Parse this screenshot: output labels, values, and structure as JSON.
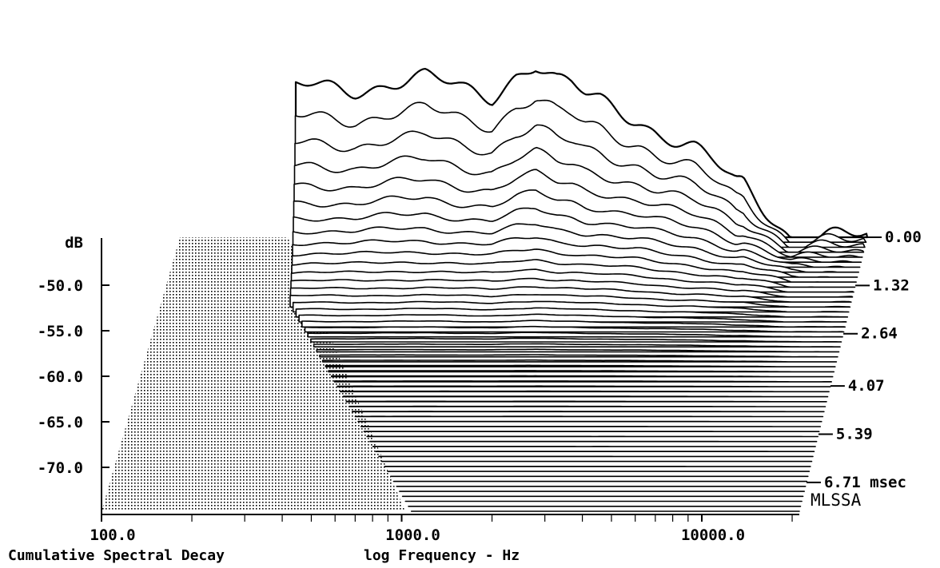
{
  "chart_data": {
    "type": "waterfall",
    "title": "Cumulative Spectral Decay",
    "xlabel": "log Frequency - Hz",
    "ylabel": "dB",
    "brand": "MLSSA",
    "x_scale": "log",
    "xlim": [
      100,
      2000
    ],
    "ylim": [
      -75,
      -45
    ],
    "x_ticks": [
      {
        "value": 100,
        "label": "100.0"
      },
      {
        "value": 1000,
        "label": "1000.0"
      },
      {
        "value": 10000,
        "label": "10000.0"
      }
    ],
    "y_ticks": [
      {
        "value": -50,
        "label": "-50.0"
      },
      {
        "value": -55,
        "label": "-55.0"
      },
      {
        "value": -60,
        "label": "-60.0"
      },
      {
        "value": -65,
        "label": "-65.0"
      },
      {
        "value": -70,
        "label": "-70.0"
      }
    ],
    "time_ticks": [
      {
        "value": 0.0,
        "label": "0.00"
      },
      {
        "value": 1.32,
        "label": "1.32"
      },
      {
        "value": 2.64,
        "label": "2.64"
      },
      {
        "value": 4.07,
        "label": "4.07"
      },
      {
        "value": 5.39,
        "label": "5.39"
      },
      {
        "value": 6.71,
        "label": "6.71 msec"
      }
    ],
    "time_unit": "msec",
    "time_range": [
      0,
      7.5
    ],
    "slice_count": 56,
    "initial_response_db": [
      {
        "freq": 300,
        "db": -46.5
      },
      {
        "freq": 400,
        "db": -45.8
      },
      {
        "freq": 500,
        "db": -45.5
      },
      {
        "freq": 700,
        "db": -45.8
      },
      {
        "freq": 900,
        "db": -45.0
      },
      {
        "freq": 1200,
        "db": -44.5
      },
      {
        "freq": 1600,
        "db": -45.8
      },
      {
        "freq": 2000,
        "db": -46.5
      },
      {
        "freq": 2400,
        "db": -44.0
      },
      {
        "freq": 2800,
        "db": -43.0
      },
      {
        "freq": 3300,
        "db": -45.0
      },
      {
        "freq": 3700,
        "db": -45.5
      },
      {
        "freq": 4100,
        "db": -46.5
      },
      {
        "freq": 4600,
        "db": -47.0
      },
      {
        "freq": 5300,
        "db": -48.0
      },
      {
        "freq": 6200,
        "db": -49.0
      },
      {
        "freq": 7200,
        "db": -50.5
      },
      {
        "freq": 8200,
        "db": -51.5
      },
      {
        "freq": 9500,
        "db": -52.5
      },
      {
        "freq": 11000,
        "db": -54.0
      },
      {
        "freq": 13000,
        "db": -56.0
      }
    ]
  }
}
